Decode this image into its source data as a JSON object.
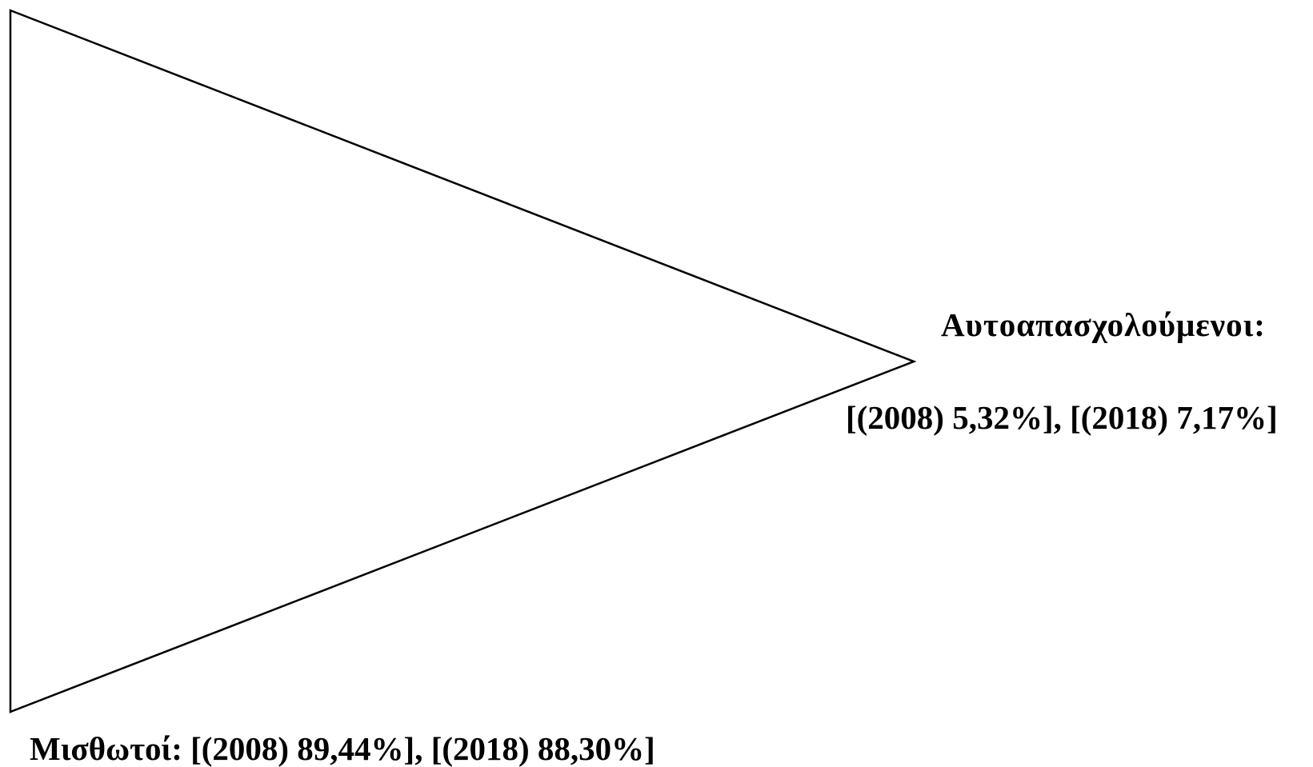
{
  "diagram": {
    "apex_label": {
      "title": "Αυτοαπασχολούμενοι:",
      "values": "[(2008) 5,32%], [(2018) 7,17%]"
    },
    "base_label": {
      "text": "Μισθωτοί: [(2008) 89,44%], [(2018) 88,30%]"
    },
    "colors": {
      "stroke": "#000000",
      "fill": "#ffffff",
      "text": "#000000"
    }
  }
}
